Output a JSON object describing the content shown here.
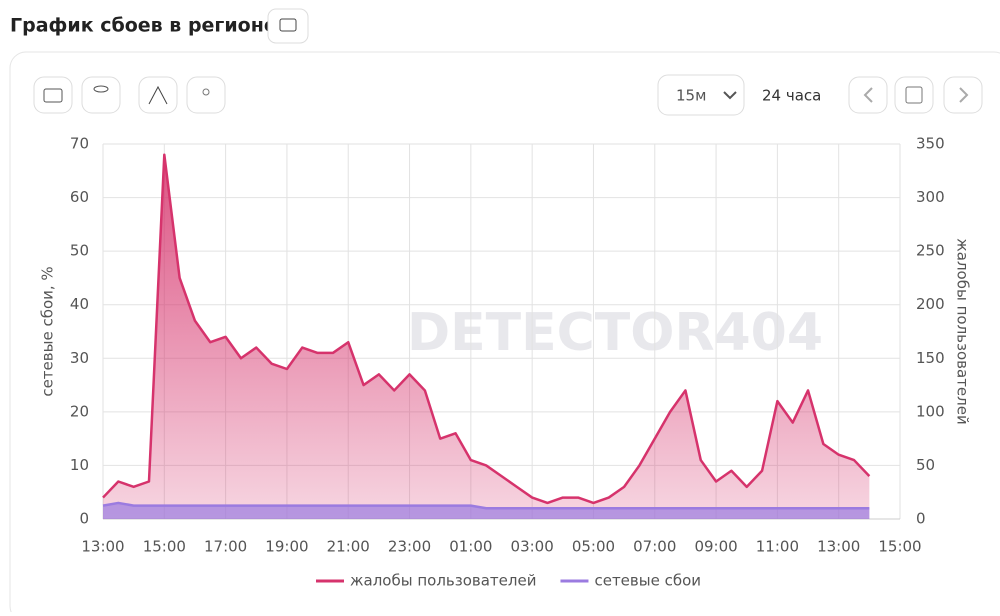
{
  "header": {
    "title": "График сбоев в регионе"
  },
  "toolbar": {
    "interval": "15м",
    "range": "24 часа"
  },
  "watermark": "DETECTOR404",
  "chart_data": {
    "type": "area",
    "y_label": "сетевые сбои, %",
    "y2_label": "жалобы пользователей",
    "categories": [
      "13:00",
      null,
      null,
      null,
      "15:00",
      null,
      null,
      null,
      "17:00",
      null,
      null,
      null,
      "19:00",
      null,
      null,
      null,
      "21:00",
      null,
      null,
      null,
      "23:00",
      null,
      null,
      null,
      "01:00",
      null,
      null,
      null,
      "03:00",
      null,
      null,
      null,
      "05:00",
      null,
      null,
      null,
      "07:00",
      null,
      null,
      null,
      "09:00",
      null,
      null,
      null,
      "11:00",
      null,
      null,
      null,
      "13:00",
      null,
      null,
      null,
      "15:00"
    ],
    "series": [
      {
        "name": "жалобы пользователей",
        "color": "#d6336c",
        "axis": "y2",
        "values": [
          20,
          35,
          30,
          35,
          340,
          225,
          185,
          165,
          170,
          150,
          160,
          145,
          140,
          160,
          155,
          155,
          165,
          125,
          135,
          120,
          135,
          120,
          75,
          80,
          55,
          50,
          40,
          30,
          20,
          15,
          20,
          20,
          15,
          20,
          30,
          50,
          75,
          100,
          120,
          55,
          35,
          45,
          30,
          45,
          110,
          90,
          120,
          70,
          60,
          55,
          40,
          null,
          null
        ]
      },
      {
        "name": "сетевые сбои",
        "color": "#9b7be0",
        "axis": "y",
        "values": [
          2.5,
          3,
          2.5,
          2.5,
          2.5,
          2.5,
          2.5,
          2.5,
          2.5,
          2.5,
          2.5,
          2.5,
          2.5,
          2.5,
          2.5,
          2.5,
          2.5,
          2.5,
          2.5,
          2.5,
          2.5,
          2.5,
          2.5,
          2.5,
          2.5,
          2,
          2,
          2,
          2,
          2,
          2,
          2,
          2,
          2,
          2,
          2,
          2,
          2,
          2,
          2,
          2,
          2,
          2,
          2,
          2,
          2,
          2,
          2,
          2,
          2,
          2,
          null,
          null
        ]
      }
    ],
    "ylim": [
      0,
      70
    ],
    "yticks": [
      0,
      10,
      20,
      30,
      40,
      50,
      60,
      70
    ],
    "y2lim": [
      0,
      350
    ],
    "y2ticks": [
      0,
      50,
      100,
      150,
      200,
      250,
      300,
      350
    ],
    "grid": true,
    "legend": "bottom"
  }
}
